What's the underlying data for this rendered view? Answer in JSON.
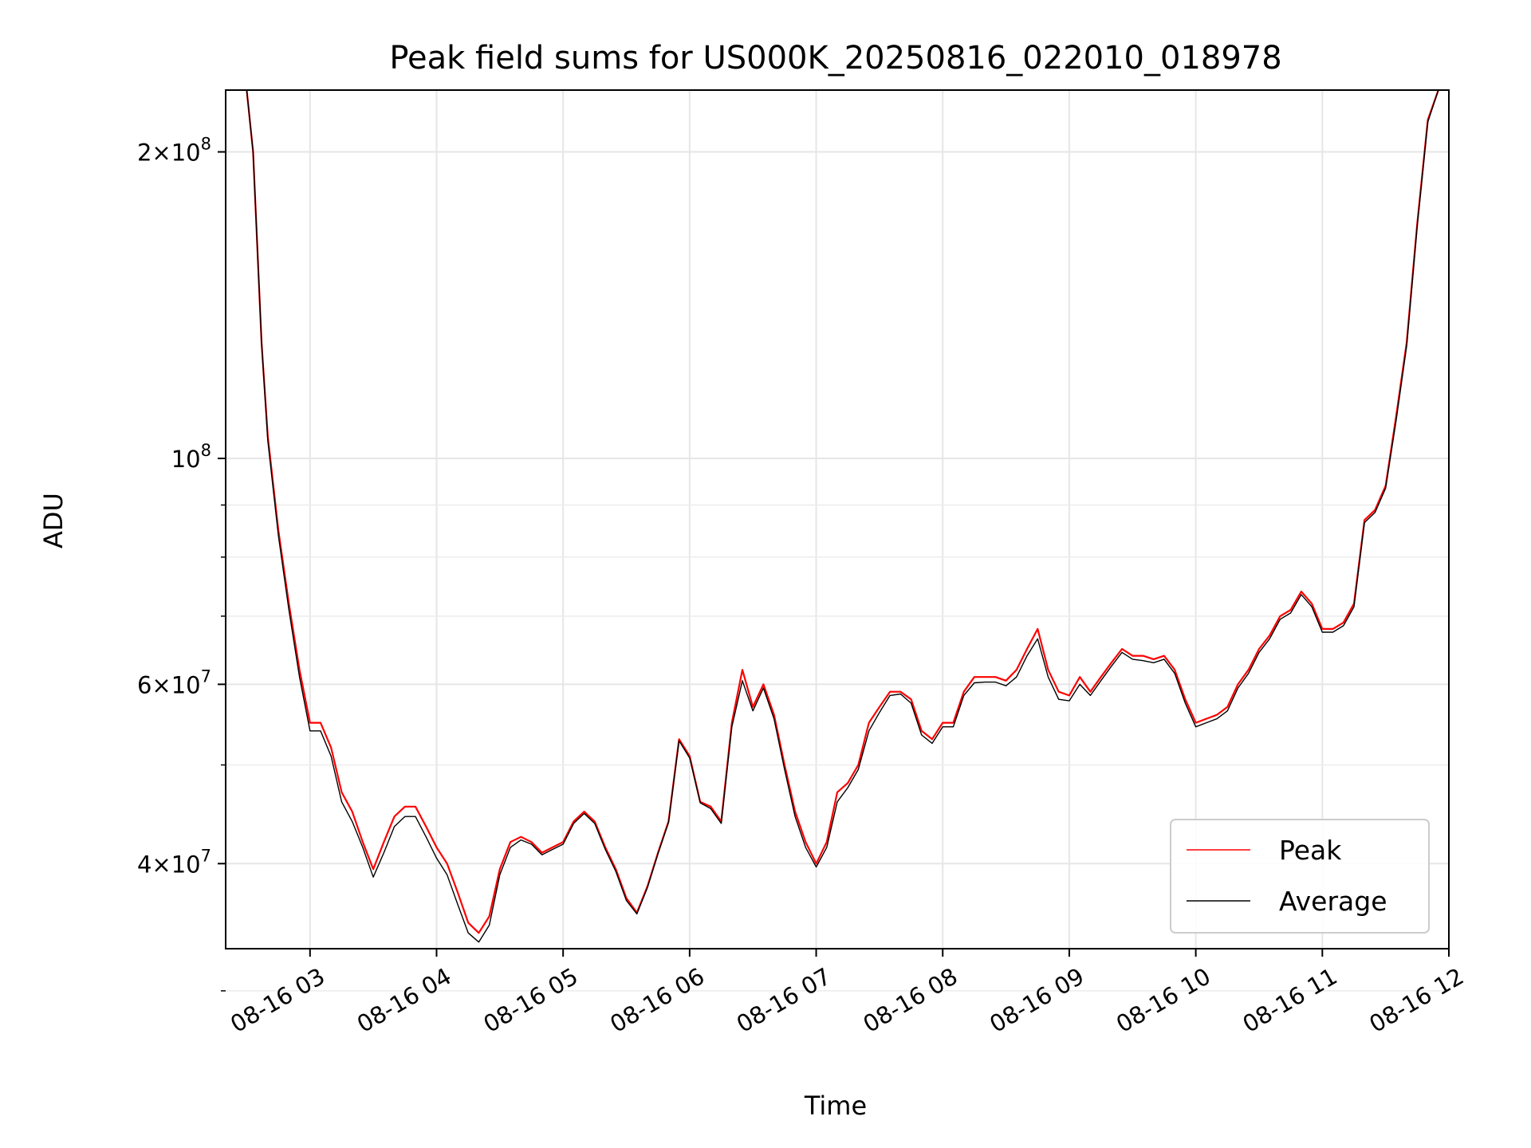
{
  "chart_data": {
    "type": "line",
    "title": "Peak field sums for US000K_20250816_022010_018978",
    "xlabel": "Time",
    "ylabel": "ADU",
    "xlim": [
      "2025-08-16 02:20",
      "2025-08-16 12:00"
    ],
    "ylim": [
      33000000,
      230000000
    ],
    "yscale": "log",
    "grid": true,
    "legend_position": "lower-right",
    "x_ticks": [
      "08-16 03",
      "08-16 04",
      "08-16 05",
      "08-16 06",
      "08-16 07",
      "08-16 08",
      "08-16 09",
      "08-16 10",
      "08-16 11",
      "08-16 12"
    ],
    "y_ticks": [
      {
        "value": 40000000,
        "mantissa": "4",
        "exponent": "7"
      },
      {
        "value": 60000000,
        "mantissa": "6",
        "exponent": "7"
      },
      {
        "value": 100000000,
        "mantissa": "",
        "exponent": "8"
      },
      {
        "value": 200000000,
        "mantissa": "2",
        "exponent": "8"
      }
    ],
    "series": [
      {
        "name": "Peak",
        "color": "#ff0000",
        "points": [
          [
            "2025-08-16 02:30",
            230000000
          ],
          [
            "2025-08-16 02:33",
            200000000
          ],
          [
            "2025-08-16 02:37",
            130000000
          ],
          [
            "2025-08-16 02:40",
            105000000
          ],
          [
            "2025-08-16 02:45",
            85000000
          ],
          [
            "2025-08-16 02:50",
            72000000
          ],
          [
            "2025-08-16 02:55",
            62000000
          ],
          [
            "2025-08-16 03:00",
            55000000
          ],
          [
            "2025-08-16 03:05",
            55000000
          ],
          [
            "2025-08-16 03:10",
            52000000
          ],
          [
            "2025-08-16 03:15",
            47000000
          ],
          [
            "2025-08-16 03:20",
            45000000
          ],
          [
            "2025-08-16 03:25",
            42000000
          ],
          [
            "2025-08-16 03:30",
            39500000
          ],
          [
            "2025-08-16 03:35",
            42000000
          ],
          [
            "2025-08-16 03:40",
            44500000
          ],
          [
            "2025-08-16 03:45",
            45500000
          ],
          [
            "2025-08-16 03:50",
            45500000
          ],
          [
            "2025-08-16 03:55",
            43500000
          ],
          [
            "2025-08-16 04:00",
            41500000
          ],
          [
            "2025-08-16 04:05",
            40000000
          ],
          [
            "2025-08-16 04:10",
            37500000
          ],
          [
            "2025-08-16 04:15",
            35000000
          ],
          [
            "2025-08-16 04:20",
            34200000
          ],
          [
            "2025-08-16 04:25",
            35500000
          ],
          [
            "2025-08-16 04:30",
            39500000
          ],
          [
            "2025-08-16 04:35",
            42000000
          ],
          [
            "2025-08-16 04:40",
            42500000
          ],
          [
            "2025-08-16 04:45",
            42000000
          ],
          [
            "2025-08-16 04:50",
            41000000
          ],
          [
            "2025-08-16 04:55",
            41500000
          ],
          [
            "2025-08-16 05:00",
            42000000
          ],
          [
            "2025-08-16 05:05",
            44000000
          ],
          [
            "2025-08-16 05:10",
            45000000
          ],
          [
            "2025-08-16 05:15",
            44000000
          ],
          [
            "2025-08-16 05:20",
            41500000
          ],
          [
            "2025-08-16 05:25",
            39500000
          ],
          [
            "2025-08-16 05:30",
            37000000
          ],
          [
            "2025-08-16 05:35",
            35800000
          ],
          [
            "2025-08-16 05:40",
            38000000
          ],
          [
            "2025-08-16 05:45",
            41000000
          ],
          [
            "2025-08-16 05:50",
            44000000
          ],
          [
            "2025-08-16 05:55",
            53000000
          ],
          [
            "2025-08-16 06:00",
            51000000
          ],
          [
            "2025-08-16 06:05",
            46000000
          ],
          [
            "2025-08-16 06:10",
            45500000
          ],
          [
            "2025-08-16 06:15",
            44000000
          ],
          [
            "2025-08-16 06:20",
            55000000
          ],
          [
            "2025-08-16 06:25",
            62000000
          ],
          [
            "2025-08-16 06:30",
            57000000
          ],
          [
            "2025-08-16 06:35",
            60000000
          ],
          [
            "2025-08-16 06:40",
            56000000
          ],
          [
            "2025-08-16 06:45",
            50000000
          ],
          [
            "2025-08-16 06:50",
            45000000
          ],
          [
            "2025-08-16 06:55",
            42000000
          ],
          [
            "2025-08-16 07:00",
            40000000
          ],
          [
            "2025-08-16 07:05",
            42000000
          ],
          [
            "2025-08-16 07:10",
            47000000
          ],
          [
            "2025-08-16 07:15",
            48000000
          ],
          [
            "2025-08-16 07:20",
            50000000
          ],
          [
            "2025-08-16 07:25",
            55000000
          ],
          [
            "2025-08-16 07:30",
            57000000
          ],
          [
            "2025-08-16 07:35",
            59000000
          ],
          [
            "2025-08-16 07:40",
            59000000
          ],
          [
            "2025-08-16 07:45",
            58000000
          ],
          [
            "2025-08-16 07:50",
            54000000
          ],
          [
            "2025-08-16 07:55",
            53000000
          ],
          [
            "2025-08-16 08:00",
            55000000
          ],
          [
            "2025-08-16 08:05",
            55000000
          ],
          [
            "2025-08-16 08:10",
            59000000
          ],
          [
            "2025-08-16 08:15",
            61000000
          ],
          [
            "2025-08-16 08:20",
            61000000
          ],
          [
            "2025-08-16 08:25",
            61000000
          ],
          [
            "2025-08-16 08:30",
            60500000
          ],
          [
            "2025-08-16 08:35",
            62000000
          ],
          [
            "2025-08-16 08:40",
            65000000
          ],
          [
            "2025-08-16 08:45",
            68000000
          ],
          [
            "2025-08-16 08:50",
            62000000
          ],
          [
            "2025-08-16 08:55",
            59000000
          ],
          [
            "2025-08-16 09:00",
            58500000
          ],
          [
            "2025-08-16 09:05",
            61000000
          ],
          [
            "2025-08-16 09:10",
            59000000
          ],
          [
            "2025-08-16 09:15",
            61000000
          ],
          [
            "2025-08-16 09:20",
            63000000
          ],
          [
            "2025-08-16 09:25",
            65000000
          ],
          [
            "2025-08-16 09:30",
            64000000
          ],
          [
            "2025-08-16 09:35",
            64000000
          ],
          [
            "2025-08-16 09:40",
            63500000
          ],
          [
            "2025-08-16 09:45",
            64000000
          ],
          [
            "2025-08-16 09:50",
            62000000
          ],
          [
            "2025-08-16 09:55",
            58000000
          ],
          [
            "2025-08-16 10:00",
            55000000
          ],
          [
            "2025-08-16 10:05",
            55500000
          ],
          [
            "2025-08-16 10:10",
            56000000
          ],
          [
            "2025-08-16 10:15",
            57000000
          ],
          [
            "2025-08-16 10:20",
            60000000
          ],
          [
            "2025-08-16 10:25",
            62000000
          ],
          [
            "2025-08-16 10:30",
            65000000
          ],
          [
            "2025-08-16 10:35",
            67000000
          ],
          [
            "2025-08-16 10:40",
            70000000
          ],
          [
            "2025-08-16 10:45",
            71000000
          ],
          [
            "2025-08-16 10:50",
            74000000
          ],
          [
            "2025-08-16 10:55",
            72000000
          ],
          [
            "2025-08-16 11:00",
            68000000
          ],
          [
            "2025-08-16 11:05",
            68000000
          ],
          [
            "2025-08-16 11:10",
            69000000
          ],
          [
            "2025-08-16 11:15",
            72000000
          ],
          [
            "2025-08-16 11:20",
            87000000
          ],
          [
            "2025-08-16 11:25",
            89000000
          ],
          [
            "2025-08-16 11:30",
            94000000
          ],
          [
            "2025-08-16 11:35",
            110000000
          ],
          [
            "2025-08-16 11:40",
            130000000
          ],
          [
            "2025-08-16 11:45",
            170000000
          ],
          [
            "2025-08-16 11:50",
            215000000
          ],
          [
            "2025-08-16 11:55",
            230000000
          ]
        ]
      },
      {
        "name": "Average",
        "color": "#000000",
        "points": [
          [
            "2025-08-16 02:30",
            230000000
          ],
          [
            "2025-08-16 02:33",
            200000000
          ],
          [
            "2025-08-16 02:37",
            130000000
          ],
          [
            "2025-08-16 02:40",
            104000000
          ],
          [
            "2025-08-16 02:45",
            84000000
          ],
          [
            "2025-08-16 02:50",
            71000000
          ],
          [
            "2025-08-16 02:55",
            61000000
          ],
          [
            "2025-08-16 03:00",
            54000000
          ],
          [
            "2025-08-16 03:05",
            54000000
          ],
          [
            "2025-08-16 03:10",
            51000000
          ],
          [
            "2025-08-16 03:15",
            46000000
          ],
          [
            "2025-08-16 03:20",
            44000000
          ],
          [
            "2025-08-16 03:25",
            41500000
          ],
          [
            "2025-08-16 03:30",
            38800000
          ],
          [
            "2025-08-16 03:35",
            41000000
          ],
          [
            "2025-08-16 03:40",
            43500000
          ],
          [
            "2025-08-16 03:45",
            44500000
          ],
          [
            "2025-08-16 03:50",
            44500000
          ],
          [
            "2025-08-16 03:55",
            42500000
          ],
          [
            "2025-08-16 04:00",
            40500000
          ],
          [
            "2025-08-16 04:05",
            39000000
          ],
          [
            "2025-08-16 04:10",
            36500000
          ],
          [
            "2025-08-16 04:15",
            34200000
          ],
          [
            "2025-08-16 04:20",
            33500000
          ],
          [
            "2025-08-16 04:25",
            34800000
          ],
          [
            "2025-08-16 04:30",
            39000000
          ],
          [
            "2025-08-16 04:35",
            41500000
          ],
          [
            "2025-08-16 04:40",
            42200000
          ],
          [
            "2025-08-16 04:45",
            41800000
          ],
          [
            "2025-08-16 04:50",
            40800000
          ],
          [
            "2025-08-16 04:55",
            41300000
          ],
          [
            "2025-08-16 05:00",
            41800000
          ],
          [
            "2025-08-16 05:05",
            43800000
          ],
          [
            "2025-08-16 05:10",
            44800000
          ],
          [
            "2025-08-16 05:15",
            43800000
          ],
          [
            "2025-08-16 05:20",
            41300000
          ],
          [
            "2025-08-16 05:25",
            39300000
          ],
          [
            "2025-08-16 05:30",
            36800000
          ],
          [
            "2025-08-16 05:35",
            35700000
          ],
          [
            "2025-08-16 05:40",
            37900000
          ],
          [
            "2025-08-16 05:45",
            40900000
          ],
          [
            "2025-08-16 05:50",
            43900000
          ],
          [
            "2025-08-16 05:55",
            52800000
          ],
          [
            "2025-08-16 06:00",
            50800000
          ],
          [
            "2025-08-16 06:05",
            45900000
          ],
          [
            "2025-08-16 06:10",
            45300000
          ],
          [
            "2025-08-16 06:15",
            43800000
          ],
          [
            "2025-08-16 06:20",
            54500000
          ],
          [
            "2025-08-16 06:25",
            60500000
          ],
          [
            "2025-08-16 06:30",
            56500000
          ],
          [
            "2025-08-16 06:35",
            59500000
          ],
          [
            "2025-08-16 06:40",
            55500000
          ],
          [
            "2025-08-16 06:45",
            49500000
          ],
          [
            "2025-08-16 06:50",
            44500000
          ],
          [
            "2025-08-16 06:55",
            41500000
          ],
          [
            "2025-08-16 07:00",
            39700000
          ],
          [
            "2025-08-16 07:05",
            41500000
          ],
          [
            "2025-08-16 07:10",
            46000000
          ],
          [
            "2025-08-16 07:15",
            47500000
          ],
          [
            "2025-08-16 07:20",
            49500000
          ],
          [
            "2025-08-16 07:25",
            54000000
          ],
          [
            "2025-08-16 07:30",
            56300000
          ],
          [
            "2025-08-16 07:35",
            58500000
          ],
          [
            "2025-08-16 07:40",
            58700000
          ],
          [
            "2025-08-16 07:45",
            57500000
          ],
          [
            "2025-08-16 07:50",
            53500000
          ],
          [
            "2025-08-16 07:55",
            52500000
          ],
          [
            "2025-08-16 08:00",
            54500000
          ],
          [
            "2025-08-16 08:05",
            54500000
          ],
          [
            "2025-08-16 08:10",
            58500000
          ],
          [
            "2025-08-16 08:15",
            60200000
          ],
          [
            "2025-08-16 08:20",
            60300000
          ],
          [
            "2025-08-16 08:25",
            60300000
          ],
          [
            "2025-08-16 08:30",
            59800000
          ],
          [
            "2025-08-16 08:35",
            61000000
          ],
          [
            "2025-08-16 08:40",
            64000000
          ],
          [
            "2025-08-16 08:45",
            66500000
          ],
          [
            "2025-08-16 08:50",
            61000000
          ],
          [
            "2025-08-16 08:55",
            58000000
          ],
          [
            "2025-08-16 09:00",
            57800000
          ],
          [
            "2025-08-16 09:05",
            60000000
          ],
          [
            "2025-08-16 09:10",
            58500000
          ],
          [
            "2025-08-16 09:15",
            60500000
          ],
          [
            "2025-08-16 09:20",
            62500000
          ],
          [
            "2025-08-16 09:25",
            64500000
          ],
          [
            "2025-08-16 09:30",
            63500000
          ],
          [
            "2025-08-16 09:35",
            63300000
          ],
          [
            "2025-08-16 09:40",
            63000000
          ],
          [
            "2025-08-16 09:45",
            63500000
          ],
          [
            "2025-08-16 09:50",
            61500000
          ],
          [
            "2025-08-16 09:55",
            57500000
          ],
          [
            "2025-08-16 10:00",
            54500000
          ],
          [
            "2025-08-16 10:05",
            55000000
          ],
          [
            "2025-08-16 10:10",
            55500000
          ],
          [
            "2025-08-16 10:15",
            56500000
          ],
          [
            "2025-08-16 10:20",
            59500000
          ],
          [
            "2025-08-16 10:25",
            61500000
          ],
          [
            "2025-08-16 10:30",
            64500000
          ],
          [
            "2025-08-16 10:35",
            66500000
          ],
          [
            "2025-08-16 10:40",
            69500000
          ],
          [
            "2025-08-16 10:45",
            70500000
          ],
          [
            "2025-08-16 10:50",
            73500000
          ],
          [
            "2025-08-16 10:55",
            71500000
          ],
          [
            "2025-08-16 11:00",
            67500000
          ],
          [
            "2025-08-16 11:05",
            67500000
          ],
          [
            "2025-08-16 11:10",
            68500000
          ],
          [
            "2025-08-16 11:15",
            71500000
          ],
          [
            "2025-08-16 11:20",
            86500000
          ],
          [
            "2025-08-16 11:25",
            88500000
          ],
          [
            "2025-08-16 11:30",
            93500000
          ],
          [
            "2025-08-16 11:35",
            109000000
          ],
          [
            "2025-08-16 11:40",
            129000000
          ],
          [
            "2025-08-16 11:45",
            169000000
          ],
          [
            "2025-08-16 11:50",
            214000000
          ],
          [
            "2025-08-16 11:55",
            230000000
          ]
        ]
      }
    ]
  }
}
